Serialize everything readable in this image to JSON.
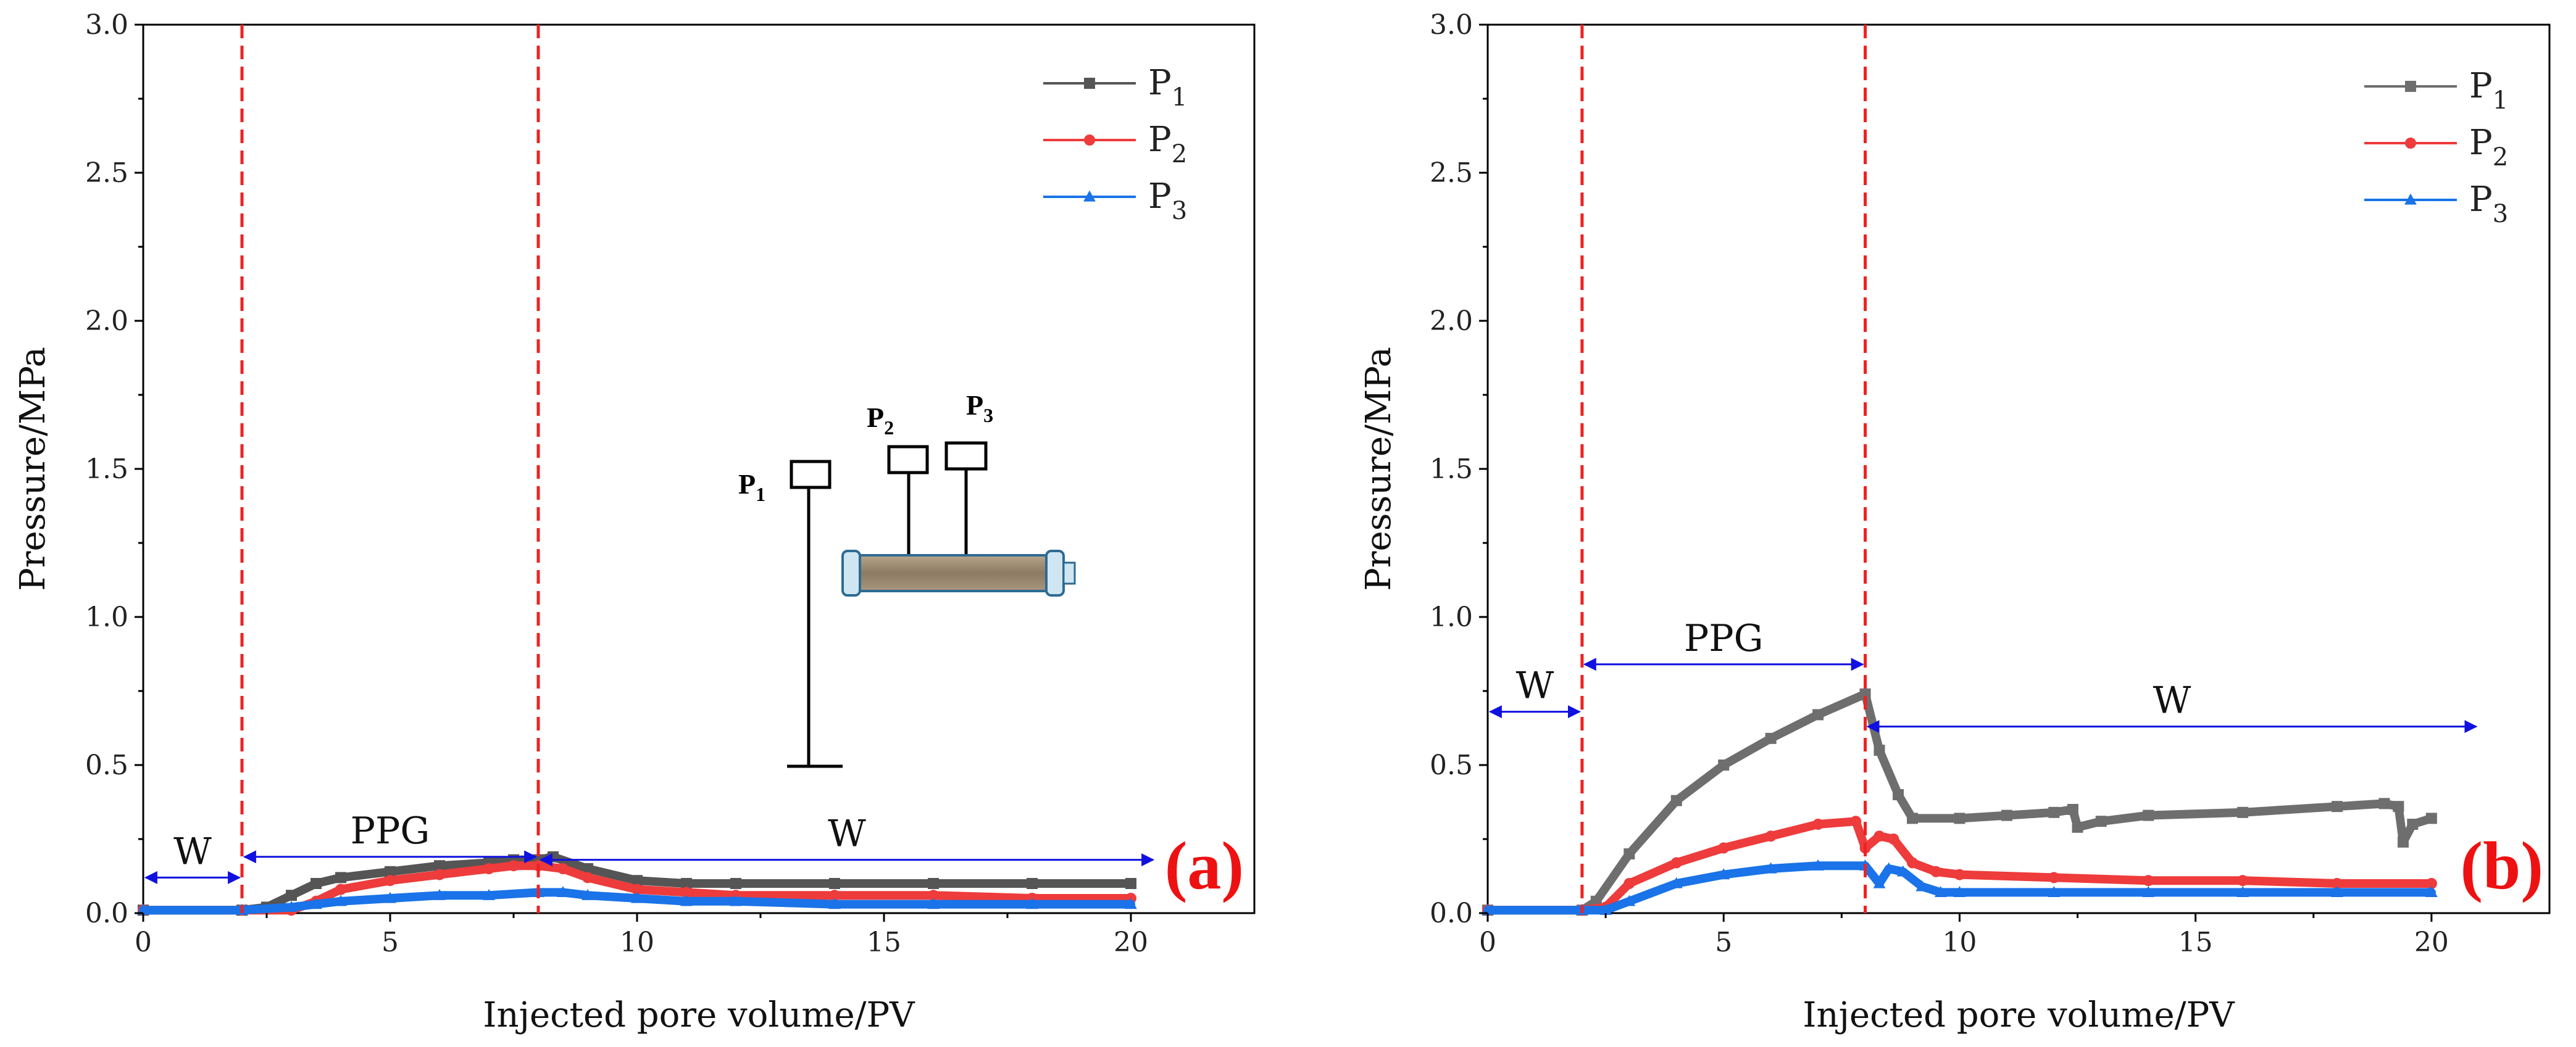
{
  "chart_data": [
    {
      "type": "line",
      "panel_label": "(a)",
      "xlabel": "Injected pore volume/PV",
      "ylabel": "Pressure/MPa",
      "xlim": [
        0,
        22.5
      ],
      "ylim": [
        0,
        3.0
      ],
      "xticks": [
        "0",
        "5",
        "10",
        "15",
        "20"
      ],
      "yticks": [
        "0.0",
        "0.5",
        "1.0",
        "1.5",
        "2.0",
        "2.5",
        "3.0"
      ],
      "legend_position": "top-right",
      "vlines": [
        2,
        8
      ],
      "annotations": [
        {
          "text": "W",
          "x_from": 0,
          "x_to": 2,
          "y": 0.12
        },
        {
          "text": "PPG",
          "x_from": 2,
          "x_to": 8,
          "y": 0.19
        },
        {
          "text": "W",
          "x_from": 8,
          "x_to": 20.5,
          "y": 0.18
        }
      ],
      "inset": {
        "labels": [
          "P1",
          "P2",
          "P3"
        ],
        "label_base": "P",
        "label_subs": [
          "1",
          "2",
          "3"
        ]
      },
      "series": [
        {
          "name": "P1",
          "label_base": "P",
          "label_sub": "1",
          "color": "#555555",
          "marker": "square",
          "x": [
            0,
            2,
            2.5,
            3,
            3.5,
            4,
            5,
            6,
            7,
            7.5,
            8,
            8.3,
            9,
            10,
            11,
            12,
            14,
            16,
            18,
            20
          ],
          "y": [
            0.01,
            0.01,
            0.02,
            0.06,
            0.1,
            0.12,
            0.14,
            0.16,
            0.17,
            0.18,
            0.18,
            0.19,
            0.15,
            0.11,
            0.1,
            0.1,
            0.1,
            0.1,
            0.1,
            0.1
          ]
        },
        {
          "name": "P2",
          "label_base": "P",
          "label_sub": "2",
          "color": "#ee3b3b",
          "marker": "circle",
          "x": [
            0,
            2,
            3,
            3.5,
            4,
            5,
            6,
            7,
            7.5,
            8,
            8.5,
            9,
            10,
            11,
            12,
            14,
            16,
            18,
            20
          ],
          "y": [
            0.01,
            0.01,
            0.01,
            0.04,
            0.08,
            0.11,
            0.13,
            0.15,
            0.16,
            0.16,
            0.15,
            0.12,
            0.08,
            0.07,
            0.06,
            0.06,
            0.06,
            0.05,
            0.05
          ]
        },
        {
          "name": "P3",
          "label_base": "P",
          "label_sub": "3",
          "color": "#1a73e8",
          "marker": "triangle",
          "x": [
            0,
            2,
            3,
            3.5,
            4,
            5,
            6,
            7,
            8,
            8.5,
            9,
            10,
            11,
            12,
            14,
            16,
            18,
            20
          ],
          "y": [
            0.01,
            0.01,
            0.02,
            0.03,
            0.04,
            0.05,
            0.06,
            0.06,
            0.07,
            0.07,
            0.06,
            0.05,
            0.04,
            0.04,
            0.03,
            0.03,
            0.03,
            0.03
          ]
        }
      ]
    },
    {
      "type": "line",
      "panel_label": "(b)",
      "xlabel": "Injected pore volume/PV",
      "ylabel": "Pressure/MPa",
      "xlim": [
        0,
        22.5
      ],
      "ylim": [
        0,
        3.0
      ],
      "xticks": [
        "0",
        "5",
        "10",
        "15",
        "20"
      ],
      "yticks": [
        "0.0",
        "0.5",
        "1.0",
        "1.5",
        "2.0",
        "2.5",
        "3.0"
      ],
      "legend_position": "top-right",
      "vlines": [
        2,
        8
      ],
      "annotations": [
        {
          "text": "W",
          "x_from": 0,
          "x_to": 2,
          "y": 0.68
        },
        {
          "text": "PPG",
          "x_from": 2,
          "x_to": 8,
          "y": 0.84
        },
        {
          "text": "W",
          "x_from": 8,
          "x_to": 21,
          "y": 0.63
        }
      ],
      "series": [
        {
          "name": "P1",
          "label_base": "P",
          "label_sub": "1",
          "color": "#6e6e6e",
          "marker": "square",
          "x": [
            0,
            2,
            2.3,
            3,
            4,
            5,
            6,
            7,
            8,
            8.3,
            8.7,
            9,
            10,
            11,
            12,
            12.4,
            12.5,
            13,
            14,
            16,
            18,
            19,
            19.3,
            19.4,
            19.6,
            20
          ],
          "y": [
            0.01,
            0.01,
            0.04,
            0.2,
            0.38,
            0.5,
            0.59,
            0.67,
            0.74,
            0.55,
            0.4,
            0.32,
            0.32,
            0.33,
            0.34,
            0.35,
            0.29,
            0.31,
            0.33,
            0.34,
            0.36,
            0.37,
            0.36,
            0.24,
            0.3,
            0.32
          ]
        },
        {
          "name": "P2",
          "label_base": "P",
          "label_sub": "2",
          "color": "#ee3b3b",
          "marker": "circle",
          "x": [
            0,
            2,
            2.5,
            3,
            4,
            5,
            6,
            7,
            7.8,
            8,
            8.3,
            8.6,
            9,
            9.5,
            10,
            12,
            14,
            16,
            18,
            20
          ],
          "y": [
            0.01,
            0.01,
            0.02,
            0.1,
            0.17,
            0.22,
            0.26,
            0.3,
            0.31,
            0.22,
            0.26,
            0.25,
            0.17,
            0.14,
            0.13,
            0.12,
            0.11,
            0.11,
            0.1,
            0.1
          ]
        },
        {
          "name": "P3",
          "label_base": "P",
          "label_sub": "3",
          "color": "#1a73e8",
          "marker": "triangle",
          "x": [
            0,
            2,
            2.5,
            3,
            4,
            5,
            6,
            7,
            8,
            8.3,
            8.5,
            8.8,
            9.2,
            9.6,
            10,
            12,
            14,
            16,
            18,
            20
          ],
          "y": [
            0.01,
            0.01,
            0.01,
            0.04,
            0.1,
            0.13,
            0.15,
            0.16,
            0.16,
            0.1,
            0.15,
            0.14,
            0.09,
            0.07,
            0.07,
            0.07,
            0.07,
            0.07,
            0.07,
            0.07
          ]
        }
      ]
    }
  ]
}
